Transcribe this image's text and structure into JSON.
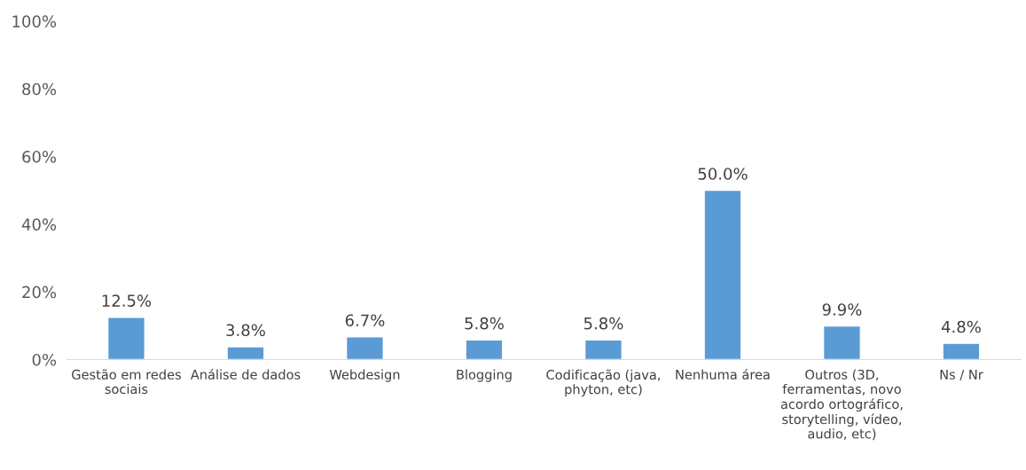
{
  "chart_data": {
    "type": "bar",
    "categories": [
      "Gestão em redes\nsociais",
      "Análise de dados",
      "Webdesign",
      "Blogging",
      "Codificação (java,\nphyton, etc)",
      "Nenhuma área",
      "Outros (3D,\nferramentas, novo\nacordo ortográfico,\nstorytelling, vídeo,\naudio, etc)",
      "Ns / Nr"
    ],
    "values": [
      12.5,
      3.8,
      6.7,
      5.8,
      5.8,
      50.0,
      9.9,
      4.8
    ],
    "value_labels": [
      "12.5%",
      "3.8%",
      "6.7%",
      "5.8%",
      "5.8%",
      "50.0%",
      "9.9%",
      "4.8%"
    ],
    "color": "#5b9bd5",
    "ylim": [
      0,
      100
    ],
    "yticks": [
      {
        "value": 0,
        "label": "0%"
      },
      {
        "value": 20,
        "label": "20%"
      },
      {
        "value": 40,
        "label": "40%"
      },
      {
        "value": 60,
        "label": "60%"
      },
      {
        "value": 80,
        "label": "80%"
      },
      {
        "value": 100,
        "label": "100%"
      }
    ],
    "grid": false,
    "legend": false
  }
}
